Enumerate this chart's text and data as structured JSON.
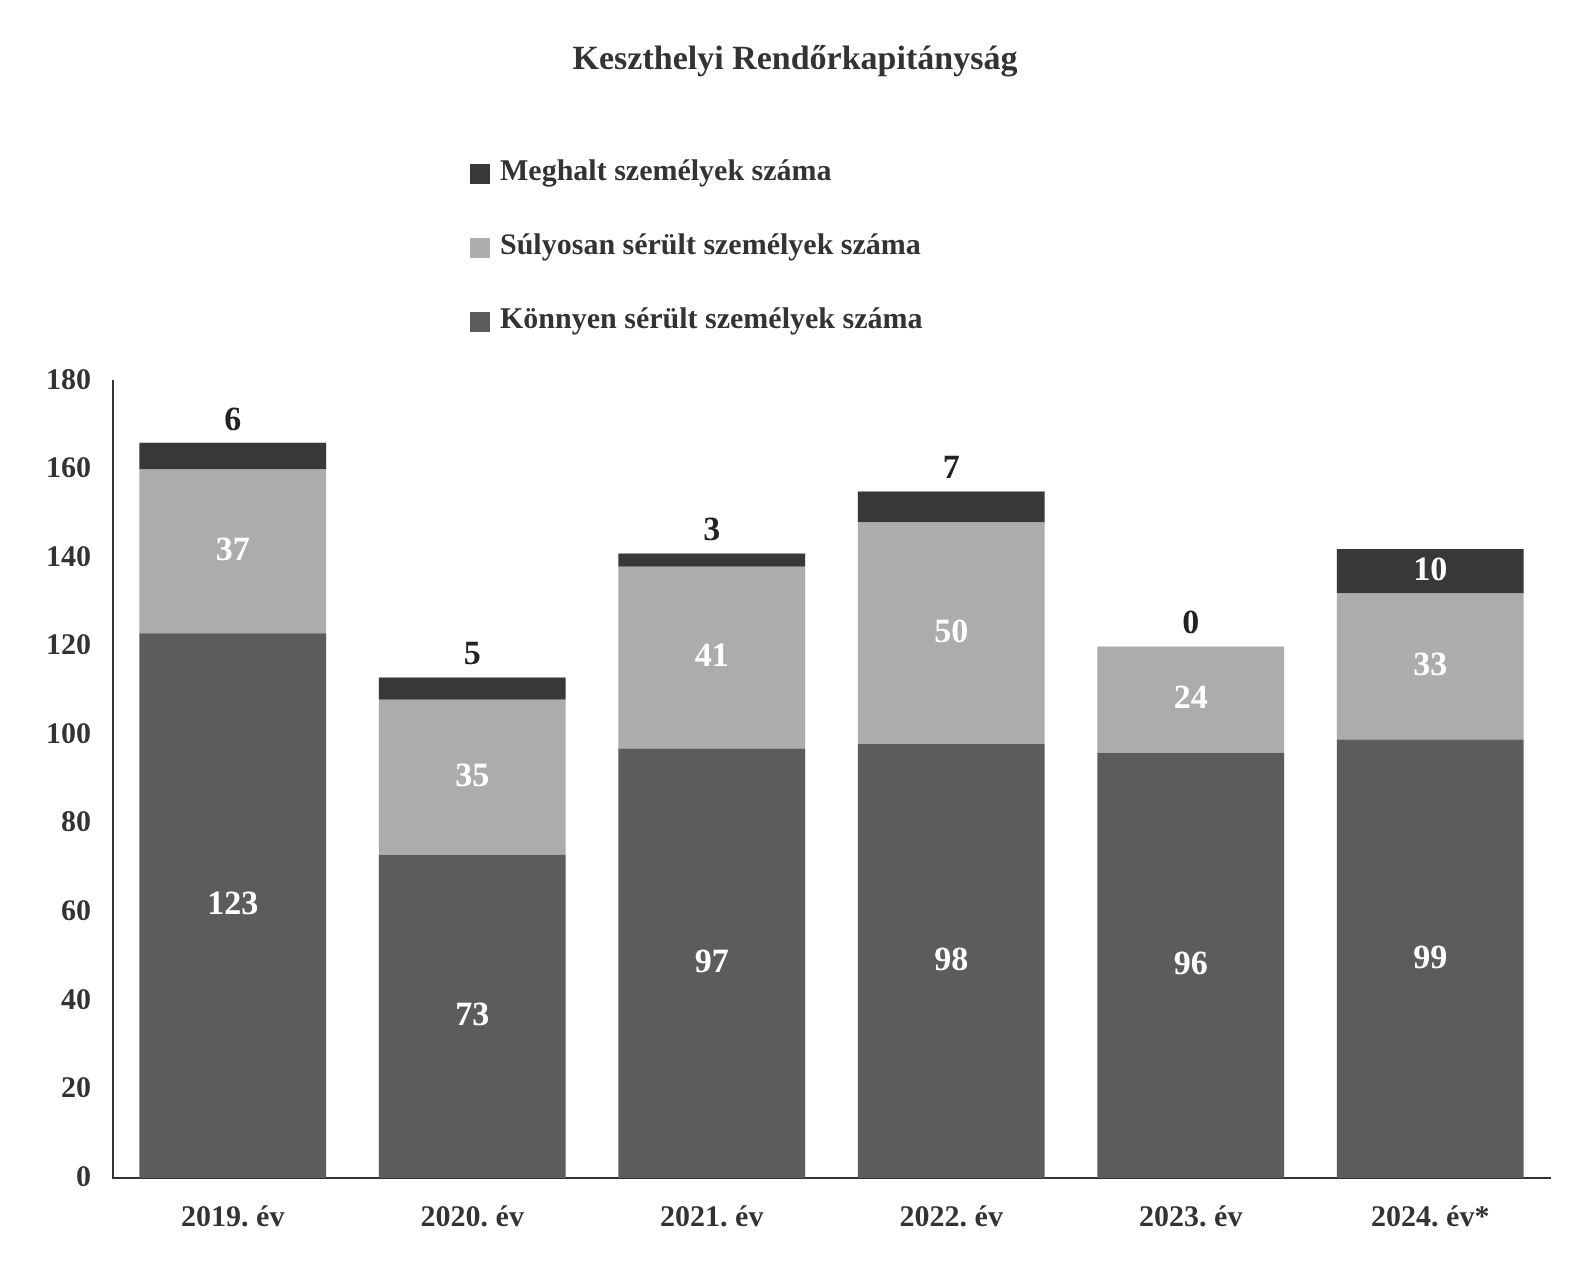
{
  "chart_data": {
    "type": "bar",
    "title": "Keszthelyi Rendőrkapitányság",
    "categories": [
      "2019. év",
      "2020. év",
      "2021. év",
      "2022. év",
      "2023. év",
      "2024. év*"
    ],
    "stacked": true,
    "series": [
      {
        "name": "Könnyen sérült személyek száma",
        "color": "#5c5c5c",
        "values": [
          123,
          73,
          97,
          98,
          96,
          99
        ]
      },
      {
        "name": "Súlyosan sérült személyek száma",
        "color": "#acacac",
        "values": [
          37,
          35,
          41,
          50,
          24,
          33
        ]
      },
      {
        "name": "Meghalt személyek száma",
        "color": "#383838",
        "values": [
          6,
          5,
          3,
          7,
          0,
          10
        ]
      }
    ],
    "ylim": [
      0,
      180
    ],
    "yticks": [
      0,
      20,
      40,
      60,
      80,
      100,
      120,
      140,
      160,
      180
    ],
    "grid": false,
    "legend": "top",
    "data_labels": true
  }
}
